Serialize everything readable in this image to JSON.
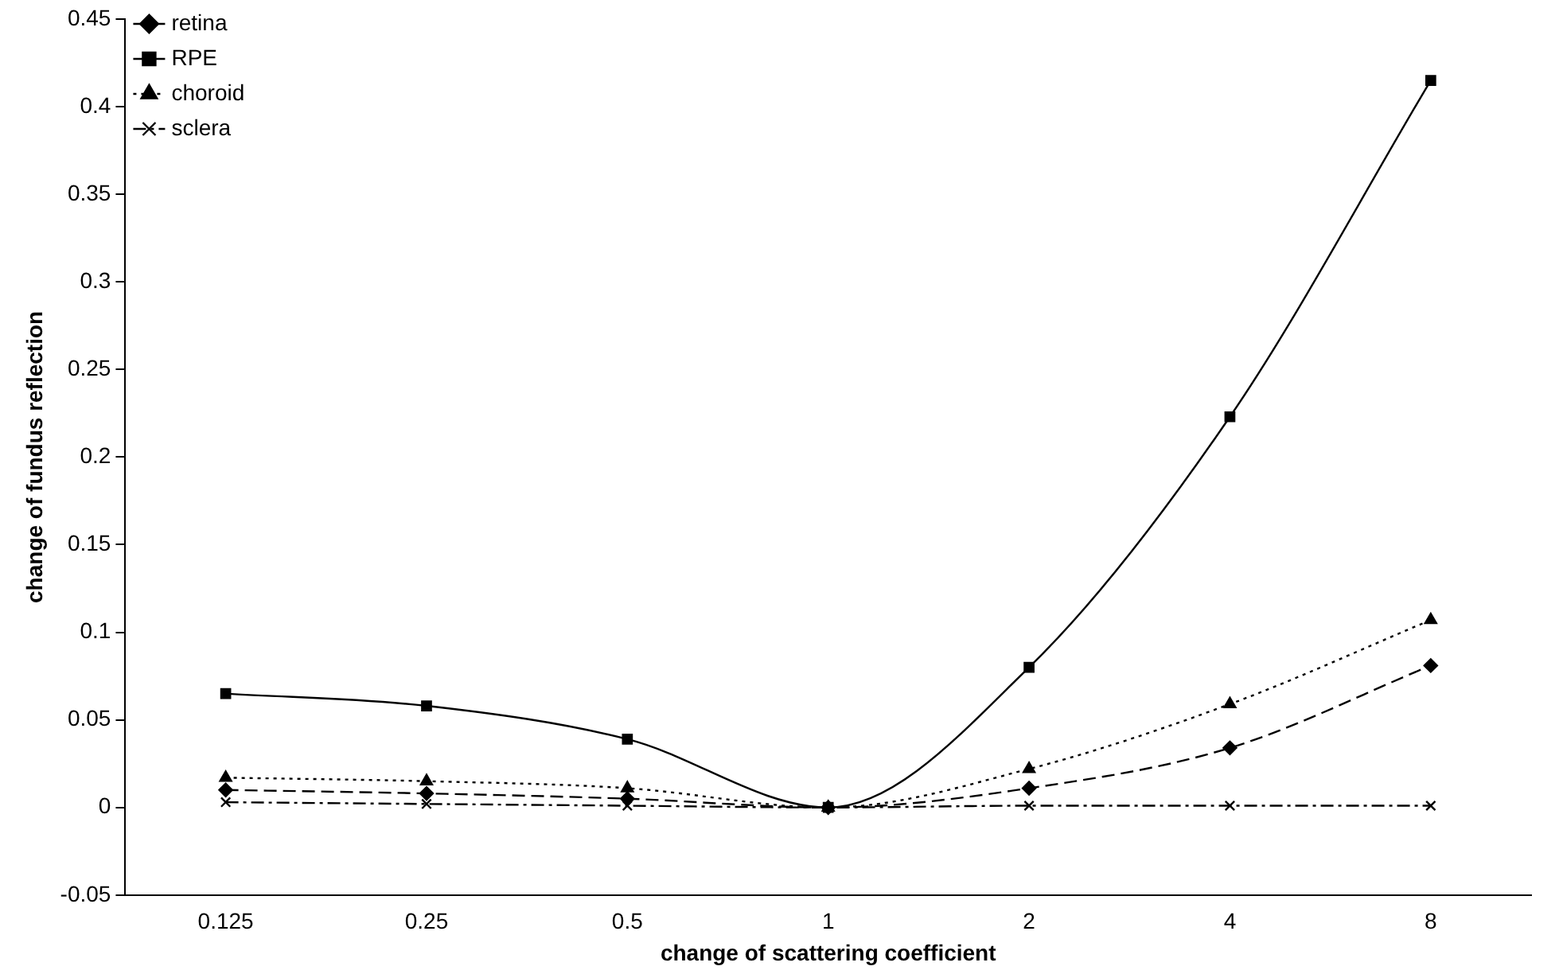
{
  "chart_data": {
    "type": "line",
    "xlabel": "change of scattering coefficient",
    "ylabel": "change of fundus reflection",
    "categories": [
      "0.125",
      "0.25",
      "0.5",
      "1",
      "2",
      "4",
      "8"
    ],
    "series": [
      {
        "name": "retina",
        "color": "#000000",
        "marker": "diamond",
        "line_style": "dashed",
        "values": [
          0.01,
          0.008,
          0.005,
          0,
          0.011,
          0.034,
          0.081
        ]
      },
      {
        "name": "RPE",
        "color": "#000000",
        "marker": "square",
        "line_style": "solid",
        "values": [
          0.065,
          0.058,
          0.039,
          0,
          0.08,
          0.223,
          0.415
        ]
      },
      {
        "name": "choroid",
        "color": "#000000",
        "marker": "triangle",
        "line_style": "dotted",
        "values": [
          0.017,
          0.015,
          0.011,
          0,
          0.022,
          0.059,
          0.107
        ]
      },
      {
        "name": "sclera",
        "color": "#000000",
        "marker": "cross",
        "line_style": "dashdot",
        "values": [
          0.003,
          0.002,
          0.001,
          0,
          0.001,
          0.001,
          0.001
        ]
      }
    ],
    "ylim": [
      -0.05,
      0.45
    ],
    "yticks": [
      -0.05,
      0,
      0.05,
      0.1,
      0.15,
      0.2,
      0.25,
      0.3,
      0.35,
      0.4,
      0.45
    ],
    "grid": false,
    "legend": "top left"
  }
}
